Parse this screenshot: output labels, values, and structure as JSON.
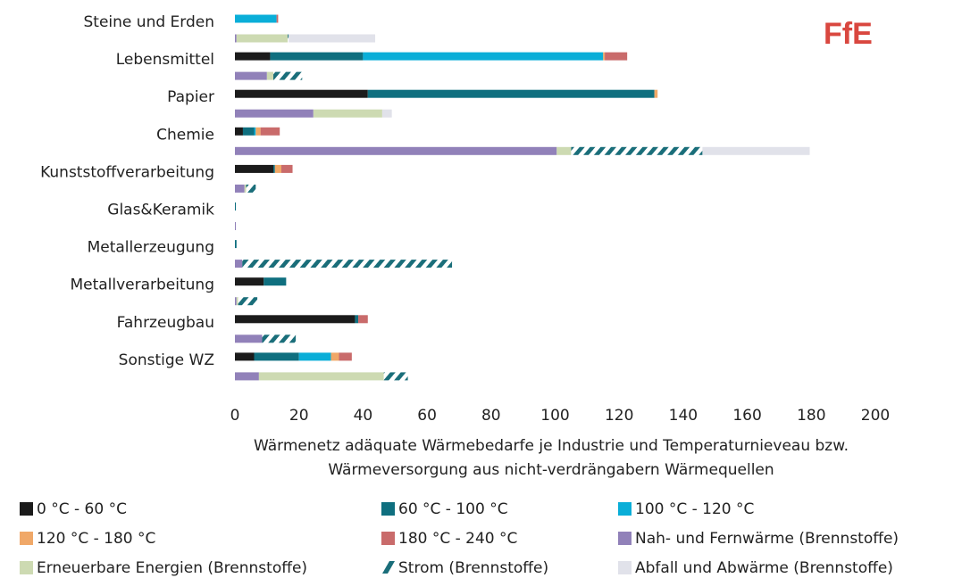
{
  "chart_data": {
    "type": "bar",
    "orientation": "horizontal",
    "stacked": true,
    "logo": "FfE",
    "xlabel": [
      "Wärmenetz adäquate Wärmebedarfe je Industrie und Temperaturnieveau bzw.",
      "Wärmeversorgung aus nicht-verdrängabern Wärmequellen"
    ],
    "categories": [
      "Steine und Erden",
      "Lebensmittel",
      "Papier",
      "Chemie",
      "Kunststoffverarbeitung",
      "Glas&Keramik",
      "Metallerzeugung",
      "Metallverarbeitung",
      "Fahrzeugbau",
      "Sonstige WZ"
    ],
    "xlim": [
      0,
      200
    ],
    "xticks": [
      0,
      20,
      40,
      60,
      80,
      100,
      120,
      140,
      160,
      180,
      200
    ],
    "series": [
      {
        "name": "0 °C - 60 °C",
        "color": "#1b1b1b",
        "stack": "demand",
        "values": [
          0,
          11,
          41.5,
          2.5,
          12,
          0,
          0,
          9,
          37.5,
          6
        ]
      },
      {
        "name": "60 °C - 100 °C",
        "color": "#0f6f7f",
        "stack": "demand",
        "values": [
          0,
          29,
          89.5,
          3.5,
          0.5,
          0.3,
          0.5,
          7,
          1,
          14
        ]
      },
      {
        "name": "100 °C - 120 °C",
        "color": "#0aaed8",
        "stack": "demand",
        "values": [
          13,
          75,
          0,
          0.5,
          0,
          0,
          0,
          0,
          0,
          10
        ]
      },
      {
        "name": "120 °C - 180 °C",
        "color": "#f0a868",
        "stack": "demand",
        "values": [
          0,
          0.5,
          1,
          1.5,
          2,
          0,
          0,
          0,
          0,
          2.5
        ]
      },
      {
        "name": "180 °C - 240 °C",
        "color": "#c96b6b",
        "stack": "demand",
        "values": [
          0.5,
          7,
          0,
          6,
          3.5,
          0,
          0,
          0,
          3,
          4
        ]
      },
      {
        "name": "Nah- und Fernwärme (Brennstoffe)",
        "color": "#9181b9",
        "stack": "supply",
        "values": [
          0.5,
          10,
          24.5,
          100.5,
          3,
          0.3,
          2.3,
          0.5,
          8.5,
          7.5
        ]
      },
      {
        "name": "Erneuerbare Energien (Brennstoffe)",
        "color": "#cddab2",
        "stack": "supply",
        "values": [
          16,
          2,
          21.5,
          4.5,
          0.5,
          0,
          0,
          0.5,
          0,
          39
        ]
      },
      {
        "name": "Strom (Brennstoffe)",
        "color": "#1a6e7a",
        "hatch": true,
        "stack": "supply",
        "values": [
          0.3,
          9,
          0,
          41,
          3,
          0,
          65.5,
          6,
          10.5,
          7.5
        ]
      },
      {
        "name": "Abfall und Abwärme (Brennstoffe)",
        "color": "#e1e2ea",
        "stack": "supply",
        "values": [
          27,
          0,
          3,
          33.5,
          0,
          0,
          0,
          0,
          0,
          0
        ]
      }
    ]
  }
}
